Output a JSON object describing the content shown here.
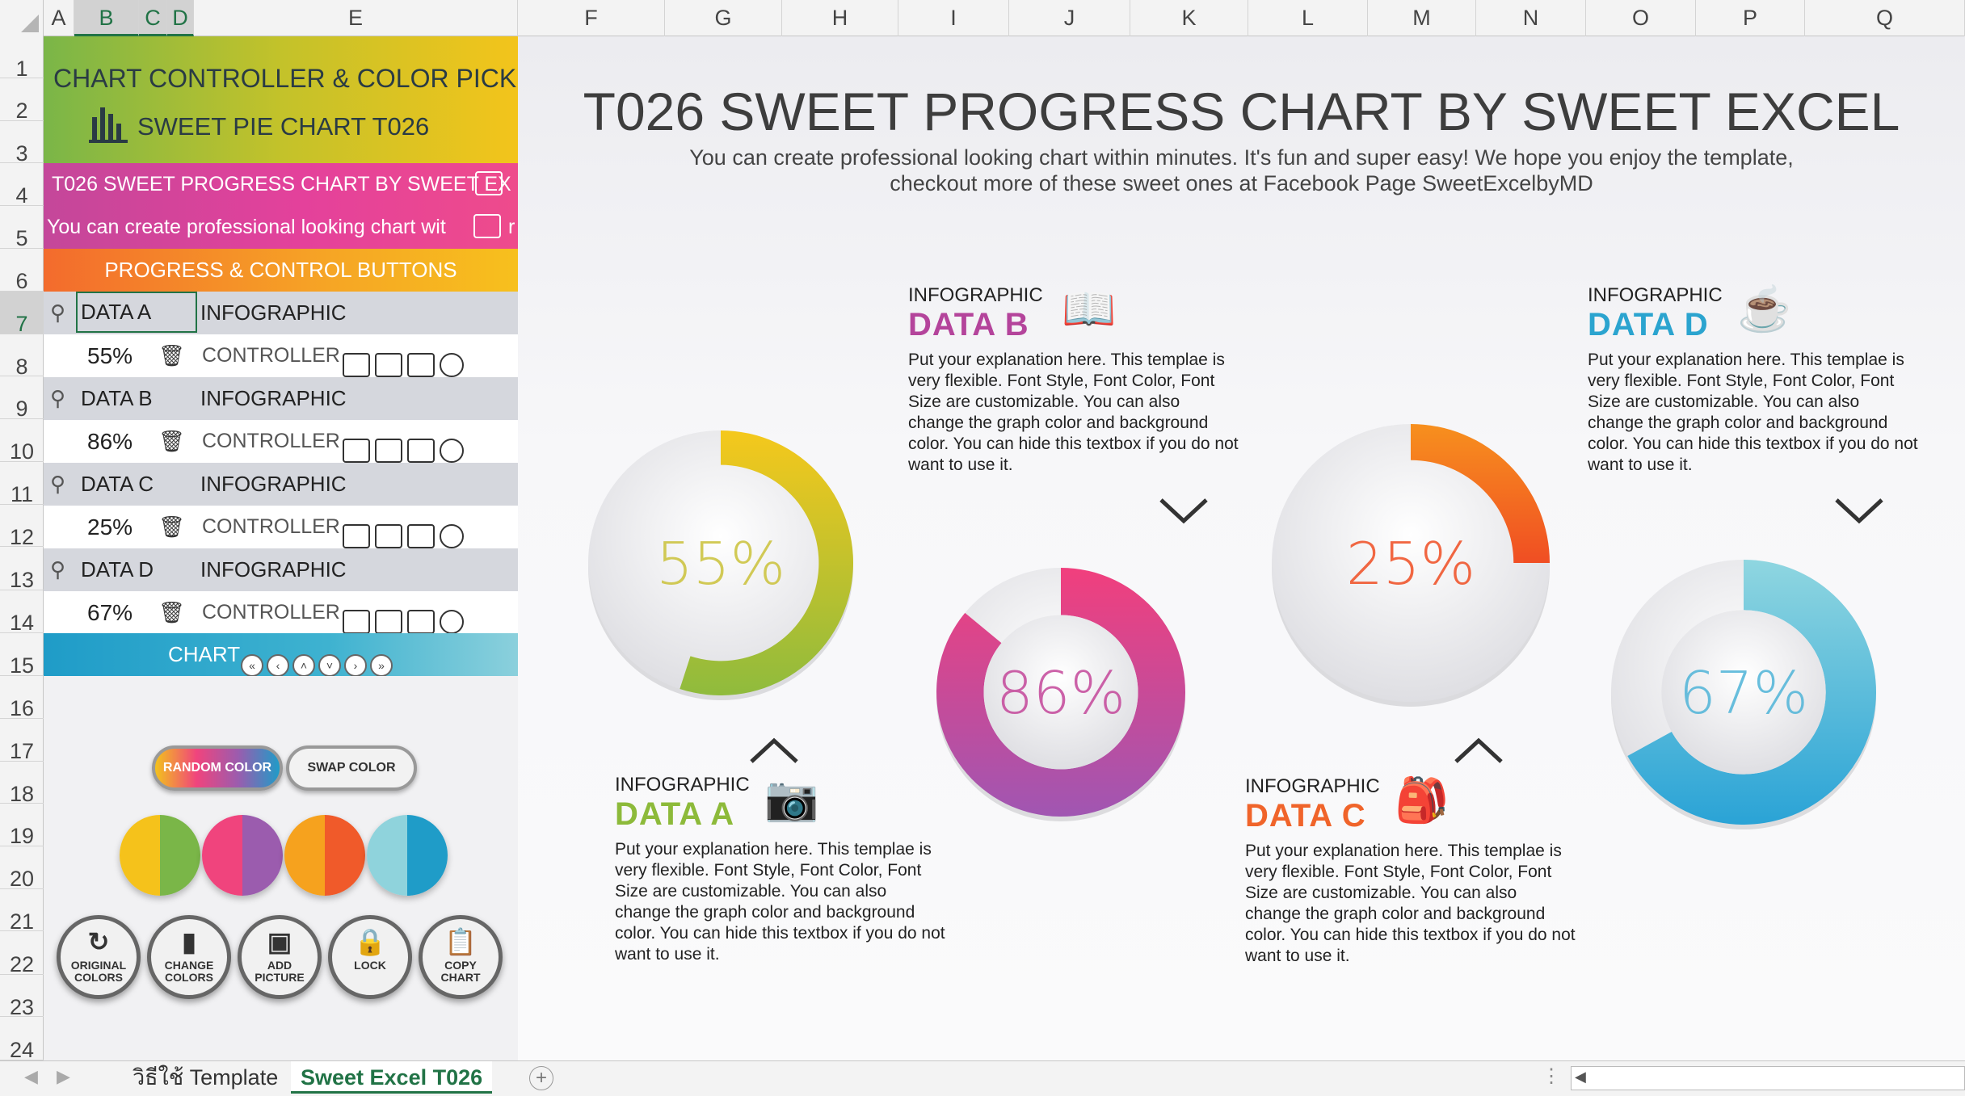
{
  "columns": [
    "A",
    "B",
    "C",
    "D",
    "E",
    "F",
    "G",
    "H",
    "I",
    "J",
    "K",
    "L",
    "M",
    "N",
    "O",
    "P",
    "Q"
  ],
  "rows": [
    "1",
    "2",
    "3",
    "4",
    "5",
    "6",
    "7",
    "8",
    "9",
    "10",
    "11",
    "12",
    "13",
    "14",
    "15",
    "16",
    "17",
    "18",
    "19",
    "20",
    "21",
    "22",
    "23",
    "24"
  ],
  "panel": {
    "title1": "CHART CONTROLLER & COLOR PICKER",
    "title2": "SWEET PIE CHART T026",
    "row4": "T026 SWEET PROGRESS CHART BY SWEET EX",
    "row5": "You can create professional looking chart wit",
    "row5_tail": "r",
    "section": "PROGRESS & CONTROL BUTTONS",
    "items": [
      {
        "name": "DATA A",
        "kind": "INFOGRAPHIC",
        "value": "55%",
        "ctrl": "CONTROLLER"
      },
      {
        "name": "DATA B",
        "kind": "INFOGRAPHIC",
        "value": "86%",
        "ctrl": "CONTROLLER"
      },
      {
        "name": "DATA C",
        "kind": "INFOGRAPHIC",
        "value": "25%",
        "ctrl": "CONTROLLER"
      },
      {
        "name": "DATA D",
        "kind": "INFOGRAPHIC",
        "value": "67%",
        "ctrl": "CONTROLLER"
      }
    ],
    "chart_label": "CHART",
    "random_color": "RANDOM COLOR",
    "swap_color": "SWAP COLOR",
    "buttons": [
      {
        "l1": "ORIGINAL",
        "l2": "COLORS"
      },
      {
        "l1": "CHANGE",
        "l2": "COLORS"
      },
      {
        "l1": "ADD",
        "l2": "PICTURE"
      },
      {
        "l1": "LOCK",
        "l2": ""
      },
      {
        "l1": "COPY",
        "l2": "CHART"
      }
    ],
    "color_dots": [
      [
        "#f5c21b",
        "#7ab648"
      ],
      [
        "#f0447d",
        "#9b5cae"
      ],
      [
        "#f6a21e",
        "#f05a2a"
      ],
      [
        "#8fd3dc",
        "#1f9cc8"
      ]
    ]
  },
  "sheet": {
    "title": "T026 SWEET PROGRESS CHART BY SWEET EXCEL",
    "subtitle1": "You can create professional looking chart within minutes. It's fun and super easy! We hope you enjoy the template,",
    "subtitle2": "checkout more of these sweet ones at Facebook Page SweetExcelbyMD",
    "infographic_label": "INFOGRAPHIC",
    "explanation": "Put your explanation here.  This templae is very flexible. Font Style, Font Color, Font Size are customizable. You can also change the graph color and background color. You can hide this textbox if you do not want to use it.",
    "cards": [
      {
        "name": "DATA A",
        "color": "#8dba3a"
      },
      {
        "name": "DATA B",
        "color": "#b4449b"
      },
      {
        "name": "DATA C",
        "color": "#f0642a"
      },
      {
        "name": "DATA D",
        "color": "#2ba4cf"
      }
    ]
  },
  "chart_data": {
    "type": "pie",
    "categories": [
      "DATA A",
      "DATA B",
      "DATA C",
      "DATA D"
    ],
    "values": [
      55,
      86,
      25,
      67
    ],
    "labels": [
      "55%",
      "86%",
      "25%",
      "67%"
    ],
    "colors": [
      [
        "#f5c81c",
        "#8fbb3d"
      ],
      [
        "#f13f7d",
        "#a056b2"
      ],
      [
        "#f7901e",
        "#f04e23"
      ],
      [
        "#8fd6e0",
        "#2aa3d6"
      ]
    ]
  },
  "tabs": [
    {
      "label": "วิธีใช้ Template"
    },
    {
      "label": "Sweet Excel T026"
    }
  ]
}
